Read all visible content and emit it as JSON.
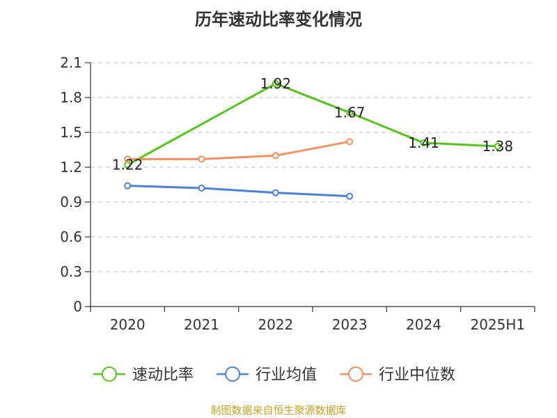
{
  "chart_data": {
    "type": "line",
    "title": "历年速动比率变化情况",
    "categories": [
      "2020",
      "2021",
      "2022",
      "2023",
      "2024",
      "2025H1"
    ],
    "yticks": [
      "0",
      "0.3",
      "0.6",
      "0.9",
      "1.2",
      "1.5",
      "1.8",
      "2.1"
    ],
    "ylim": [
      0,
      2.1
    ],
    "grid": true,
    "legend_position": "bottom",
    "series": [
      {
        "name": "速动比率",
        "color": "#52c41a",
        "values": [
          1.22,
          null,
          1.92,
          1.67,
          1.41,
          1.38
        ],
        "labels": [
          "1.22",
          "",
          "1.92",
          "1.67",
          "1.41",
          "1.38"
        ]
      },
      {
        "name": "行业均值",
        "color": "#4a7fdb",
        "values": [
          1.04,
          1.02,
          0.98,
          0.95,
          null,
          null
        ]
      },
      {
        "name": "行业中位数",
        "color": "#f4915e",
        "values": [
          1.27,
          1.27,
          1.3,
          1.42,
          null,
          null
        ]
      }
    ]
  },
  "source": "制图数据来自恒生聚源数据库"
}
